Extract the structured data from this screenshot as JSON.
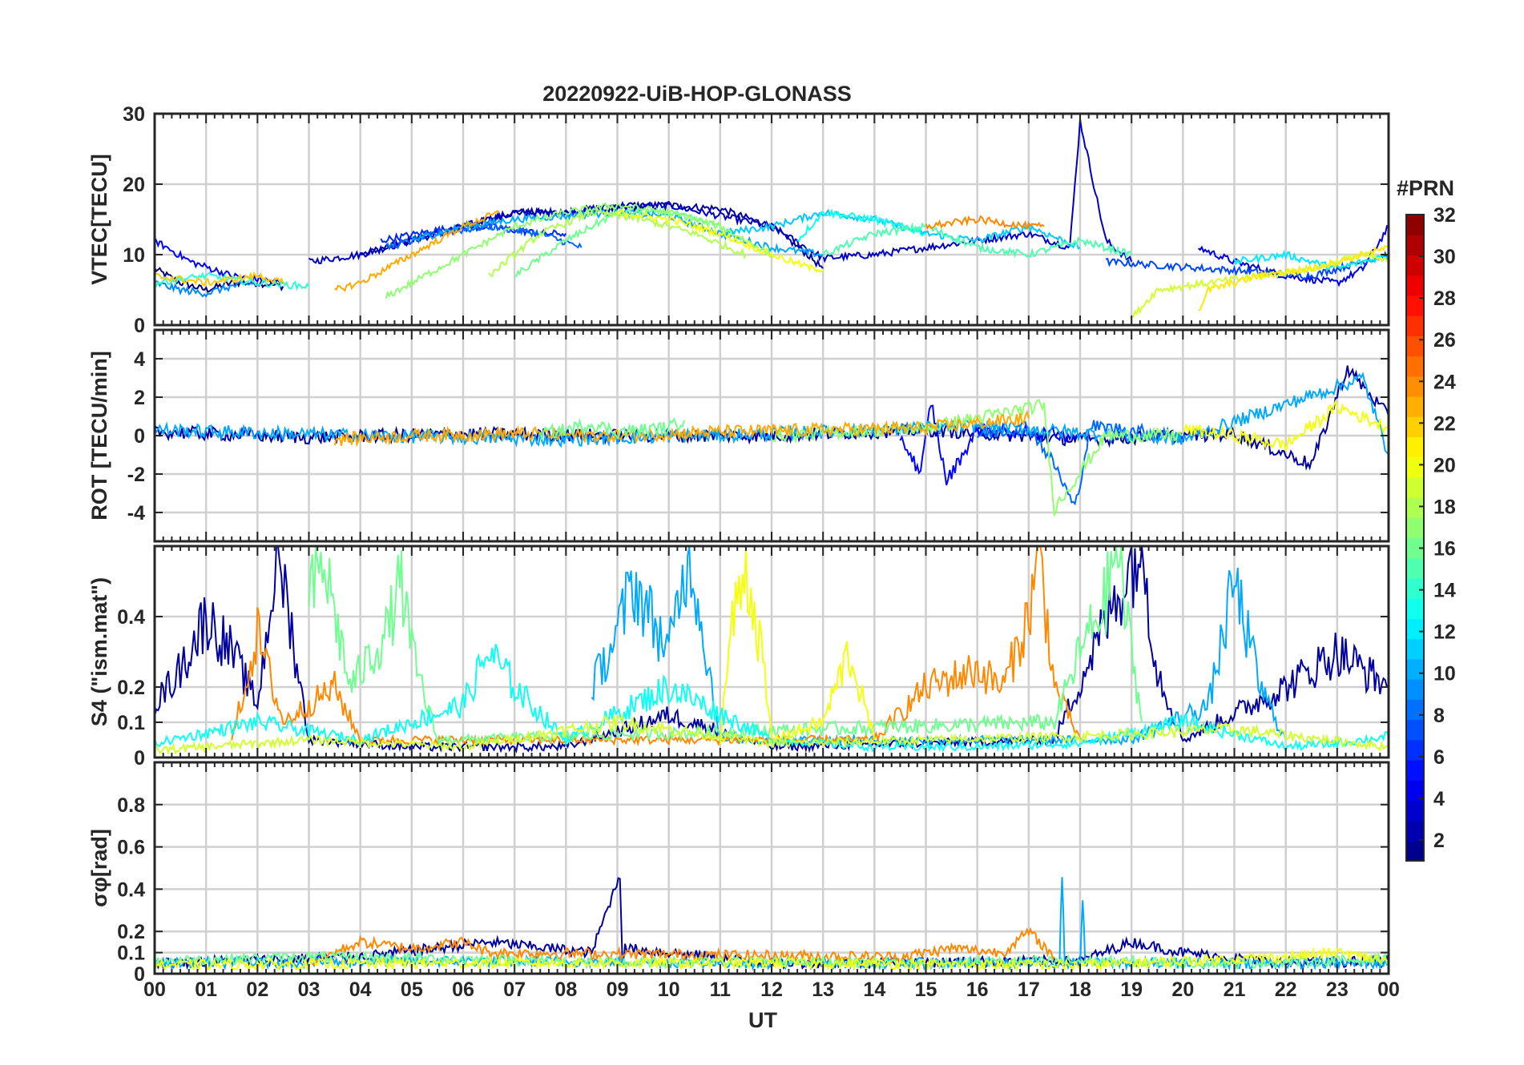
{
  "figure": {
    "title": "20220922-UiB-HOP-GLONASS",
    "xlabel": "UT",
    "x_ticks": [
      "00",
      "01",
      "02",
      "03",
      "04",
      "05",
      "06",
      "07",
      "08",
      "09",
      "10",
      "11",
      "12",
      "13",
      "14",
      "15",
      "16",
      "17",
      "18",
      "19",
      "20",
      "21",
      "22",
      "23",
      "00"
    ]
  },
  "colorbar": {
    "title": "#PRN",
    "range": [
      1,
      32
    ],
    "ticks": [
      "2",
      "4",
      "6",
      "8",
      "10",
      "12",
      "14",
      "16",
      "18",
      "20",
      "22",
      "24",
      "26",
      "28",
      "30",
      "32"
    ],
    "colormap": "jet"
  },
  "chart_data": [
    {
      "type": "line",
      "panel": "vtec",
      "ylabel": "VTEC[TECU]",
      "ylim": [
        0,
        30
      ],
      "y_ticks": [
        "0",
        "10",
        "20",
        "30"
      ],
      "xlim": [
        0,
        24
      ],
      "grid": true,
      "series": [
        {
          "prn": 1,
          "x": [
            0.0,
            0.5,
            1.0,
            1.5,
            2.0,
            2.5
          ],
          "y": [
            8,
            6,
            5,
            6,
            6,
            5.5
          ]
        },
        {
          "prn": 2,
          "x": [
            4.0,
            6.0,
            7.0,
            8.0,
            9.0,
            10.0,
            11.0,
            12.0,
            12.7,
            13.0
          ],
          "y": [
            10,
            14,
            16,
            16,
            16.5,
            17,
            16.5,
            14,
            10,
            8
          ]
        },
        {
          "prn": 3,
          "x": [
            3.0,
            4.0,
            5.0,
            6.0,
            7.0,
            8.0,
            9.0,
            10.0,
            11.0,
            12.0,
            13.0,
            14.0,
            15.0,
            16.0,
            17.0,
            17.8,
            18.0,
            18.5,
            19.0
          ],
          "y": [
            9,
            10,
            12,
            14,
            16,
            16,
            17,
            17,
            15.5,
            14,
            9.5,
            10,
            11,
            12,
            13,
            11,
            29,
            12,
            9
          ]
        },
        {
          "prn": 4,
          "x": [
            20.3,
            21.0,
            22.0,
            23.0,
            23.5,
            24.0
          ],
          "y": [
            11,
            9,
            7,
            6,
            8,
            14
          ]
        },
        {
          "prn": 5,
          "x": [
            0.0,
            0.7,
            1.5,
            2.5
          ],
          "y": [
            12,
            9,
            7,
            6
          ]
        },
        {
          "prn": 6,
          "x": [
            4.4,
            5.5,
            6.5,
            7.0,
            7.5,
            8.0
          ],
          "y": [
            12,
            13.5,
            14,
            13.5,
            13,
            13
          ]
        },
        {
          "prn": 7,
          "x": [
            18.5,
            19.5,
            20.5,
            21.5,
            22.5,
            23.5,
            24.0
          ],
          "y": [
            9,
            8.5,
            8,
            7.5,
            7,
            9,
            10
          ]
        },
        {
          "prn": 8,
          "x": [
            4.5,
            5.5,
            6.5,
            7.5,
            8.3
          ],
          "y": [
            11,
            13,
            14,
            13,
            11
          ]
        },
        {
          "prn": 9,
          "x": [
            0.0,
            0.5,
            1.0,
            1.5,
            2.0
          ],
          "y": [
            6,
            5,
            4.5,
            5.5,
            6
          ]
        },
        {
          "prn": 10,
          "x": [
            5.0,
            6.0,
            7.0,
            8.0,
            9.0,
            10.0,
            11.0,
            12.0,
            13.0
          ],
          "y": [
            12,
            14,
            15,
            15.5,
            16,
            15.5,
            13,
            11,
            10
          ]
        },
        {
          "prn": 11,
          "x": [
            11.0,
            12.0,
            12.5,
            13.0,
            14.0,
            15.0,
            16.0,
            17.0,
            18.0
          ],
          "y": [
            13,
            14,
            15,
            16,
            15,
            13,
            12,
            14,
            11
          ]
        },
        {
          "prn": 12,
          "x": [
            21.0,
            22.0,
            23.0,
            24.0
          ],
          "y": [
            9,
            10,
            8,
            10
          ]
        },
        {
          "prn": 13,
          "x": [
            12.5,
            13.0,
            14.0,
            15.0
          ],
          "y": [
            12,
            16,
            15,
            13
          ]
        },
        {
          "prn": 14,
          "x": [
            0.0,
            1.0,
            2.0,
            3.0
          ],
          "y": [
            6,
            7,
            6,
            5.5
          ]
        },
        {
          "prn": 15,
          "x": [
            13.0,
            14.0,
            15.0,
            16.0,
            17.0,
            18.0,
            19.0
          ],
          "y": [
            10,
            13,
            14,
            11,
            10,
            12,
            10
          ]
        },
        {
          "prn": 16,
          "x": [
            7.0,
            8.0,
            9.0,
            10.0,
            11.0
          ],
          "y": [
            7,
            12,
            16,
            16,
            14
          ]
        },
        {
          "prn": 17,
          "x": [
            4.5,
            5.0,
            6.0,
            7.0,
            8.0,
            9.0,
            10.0,
            11.0,
            12.0
          ],
          "y": [
            4,
            6,
            10,
            14,
            16,
            17,
            16,
            14,
            10
          ]
        },
        {
          "prn": 18,
          "x": [
            6.5,
            7.5,
            8.5,
            9.5,
            10.5,
            11.5
          ],
          "y": [
            7,
            13,
            16,
            15,
            13,
            10
          ]
        },
        {
          "prn": 19,
          "x": [
            19.0,
            19.5,
            20.5,
            21.5,
            22.5,
            23.5,
            24.0
          ],
          "y": [
            1,
            5,
            6,
            7,
            8,
            10,
            9
          ]
        },
        {
          "prn": 20,
          "x": [
            9.0,
            10.0,
            11.0,
            12.0,
            12.8,
            13.0
          ],
          "y": [
            16,
            15,
            13,
            10,
            8,
            8
          ]
        },
        {
          "prn": 21,
          "x": [
            20.3,
            20.5,
            21.0,
            21.5,
            22.5,
            23.5,
            24.0
          ],
          "y": [
            2,
            5,
            6,
            7,
            8,
            10,
            11
          ]
        },
        {
          "prn": 22,
          "x": [
            0.0,
            1.0,
            2.0,
            2.5
          ],
          "y": [
            7,
            6,
            7,
            6
          ]
        },
        {
          "prn": 23,
          "x": [
            3.5,
            4.0,
            5.0,
            6.0,
            6.7
          ],
          "y": [
            5,
            6,
            10,
            14,
            16
          ]
        },
        {
          "prn": 24,
          "x": [
            15.0,
            16.0,
            17.0,
            17.3
          ],
          "y": [
            14,
            15,
            14,
            14
          ]
        }
      ]
    },
    {
      "type": "line",
      "panel": "rot",
      "ylabel": "ROT [TECU/min]",
      "ylim": [
        -5.5,
        5.5
      ],
      "y_ticks": [
        "-4",
        "-2",
        "0",
        "2",
        "4"
      ],
      "xlim": [
        0,
        24
      ],
      "grid": true,
      "series": [
        {
          "prn": 2,
          "x": [
            0.0,
            3.0,
            6.0,
            9.0,
            12.0,
            15.0,
            18.0,
            21.0,
            22.5,
            23.2,
            24.0
          ],
          "y": [
            0.2,
            -0.1,
            0.1,
            0,
            0,
            0.3,
            -0.2,
            0.1,
            -1.5,
            3.5,
            1
          ]
        },
        {
          "prn": 5,
          "x": [
            14.5,
            14.9,
            15.1,
            15.4,
            16.0,
            18.0
          ],
          "y": [
            0,
            -2.0,
            1.8,
            -2.4,
            0.3,
            0
          ]
        },
        {
          "prn": 8,
          "x": [
            16.0,
            17.0,
            17.5,
            17.9,
            18.2,
            20.0
          ],
          "y": [
            0,
            0.5,
            -1.5,
            -3.8,
            0.5,
            0
          ]
        },
        {
          "prn": 10,
          "x": [
            0.0,
            4.0,
            8.0,
            12.0,
            16.0,
            20.0,
            23.5,
            24.0
          ],
          "y": [
            0.3,
            0,
            -0.2,
            0.1,
            0.5,
            -0.2,
            3.0,
            -1
          ]
        },
        {
          "prn": 17,
          "x": [
            12.0,
            15.0,
            17.3,
            17.5,
            18.5,
            20.0
          ],
          "y": [
            0,
            0.4,
            1.6,
            -3.8,
            0,
            0
          ]
        },
        {
          "prn": 20,
          "x": [
            20.0,
            21.0,
            22.0,
            23.0,
            24.0
          ],
          "y": [
            0.3,
            0,
            -0.5,
            1.5,
            0.4
          ]
        },
        {
          "prn": 23,
          "x": [
            3.5,
            5.0,
            7.0,
            9.0,
            11.0,
            15.0,
            17.0
          ],
          "y": [
            -0.2,
            0,
            0.1,
            0,
            0.2,
            0.4,
            0.9
          ]
        },
        {
          "prn": 16,
          "x": [
            7.5,
            8.0,
            8.5,
            9.0,
            10.0,
            10.3
          ],
          "y": [
            0.1,
            0.3,
            0.6,
            0.2,
            0.4,
            0.8
          ]
        }
      ]
    },
    {
      "type": "line",
      "panel": "s4",
      "ylabel": "S4 (\"ism.mat\")",
      "ylim": [
        0,
        0.6
      ],
      "y_ticks": [
        "0",
        "0.1",
        "0.2",
        "0.4"
      ],
      "xlim": [
        0,
        24
      ],
      "grid": true,
      "series": [
        {
          "prn": 2,
          "x": [
            0.0,
            0.5,
            1.0,
            1.5,
            2.0,
            2.4,
            3.0,
            5.0,
            8.0,
            10.0,
            12.0,
            17.5,
            19.0,
            19.2,
            19.5,
            20.0,
            22.0,
            23.0,
            24.0
          ],
          "y": [
            0.15,
            0.25,
            0.4,
            0.3,
            0.15,
            0.6,
            0.05,
            0.03,
            0.03,
            0.12,
            0.03,
            0.05,
            0.55,
            0.6,
            0.25,
            0.05,
            0.2,
            0.3,
            0.2
          ]
        },
        {
          "prn": 10,
          "x": [
            8.5,
            9.0,
            9.3,
            10.0,
            10.4,
            11.0,
            19.0,
            20.5,
            21.0,
            21.5,
            22.0
          ],
          "y": [
            0.2,
            0.35,
            0.5,
            0.3,
            0.6,
            0.05,
            0.05,
            0.15,
            0.5,
            0.2,
            0.05
          ]
        },
        {
          "prn": 24,
          "x": [
            1.5,
            2.0,
            2.5,
            3.5,
            4.0,
            14.0,
            15.0,
            16.0,
            16.5,
            17.0,
            17.2,
            17.5,
            18.0
          ],
          "y": [
            0.05,
            0.35,
            0.1,
            0.2,
            0.05,
            0.05,
            0.2,
            0.25,
            0.2,
            0.4,
            0.6,
            0.2,
            0.05
          ]
        },
        {
          "prn": 16,
          "x": [
            3.0,
            3.3,
            3.8,
            4.5,
            4.8,
            5.0,
            5.5,
            17.5,
            18.0,
            18.5,
            18.7,
            19.2
          ],
          "y": [
            0.45,
            0.55,
            0.2,
            0.35,
            0.5,
            0.3,
            0.05,
            0.1,
            0.3,
            0.45,
            0.6,
            0.1
          ]
        },
        {
          "prn": 20,
          "x": [
            11.0,
            11.2,
            11.5,
            11.8,
            12.0,
            13.0,
            13.5,
            14.0
          ],
          "y": [
            0.05,
            0.35,
            0.55,
            0.3,
            0.05,
            0.1,
            0.3,
            0.05
          ]
        },
        {
          "prn": 13,
          "x": [
            0.0,
            2.0,
            4.0,
            6.0,
            6.5,
            7.0,
            8.0,
            10.0,
            12.0,
            14.0,
            16.0,
            18.0,
            20.0,
            21.5,
            22.0,
            23.0,
            24.0
          ],
          "y": [
            0.04,
            0.1,
            0.05,
            0.15,
            0.3,
            0.2,
            0.05,
            0.2,
            0.05,
            0.03,
            0.03,
            0.04,
            0.1,
            0.05,
            0.03,
            0.04,
            0.06
          ]
        },
        {
          "prn": 19,
          "x": [
            0.0,
            3.0,
            6.0,
            9.0,
            12.0,
            15.0,
            18.0,
            21.0,
            24.0
          ],
          "y": [
            0.02,
            0.05,
            0.03,
            0.1,
            0.04,
            0.05,
            0.06,
            0.08,
            0.03
          ]
        }
      ]
    },
    {
      "type": "line",
      "panel": "sigma_phi",
      "ylabel": "σφ[rad]",
      "ylim": [
        0,
        1
      ],
      "y_ticks": [
        "0",
        "0.1",
        "0.2",
        "0.4",
        "0.6",
        "0.8"
      ],
      "xlim": [
        0,
        24
      ],
      "grid": true,
      "series": [
        {
          "prn": 2,
          "x": [
            0.0,
            4.0,
            6.5,
            8.5,
            9.05,
            9.1,
            9.15,
            10.0,
            12.0,
            18.0,
            19.0,
            20.0,
            22.0,
            24.0
          ],
          "y": [
            0.05,
            0.08,
            0.15,
            0.1,
            0.47,
            0.05,
            0.12,
            0.1,
            0.05,
            0.06,
            0.15,
            0.1,
            0.05,
            0.06
          ]
        },
        {
          "prn": 10,
          "x": [
            0.0,
            6.0,
            12.0,
            17.6,
            17.65,
            17.7,
            18.0,
            18.05,
            18.1,
            24.0
          ],
          "y": [
            0.05,
            0.06,
            0.05,
            0.05,
            0.48,
            0.05,
            0.05,
            0.37,
            0.05,
            0.05
          ]
        },
        {
          "prn": 24,
          "x": [
            3.0,
            4.0,
            5.0,
            6.0,
            6.5,
            14.5,
            15.5,
            16.5,
            17.0,
            17.5
          ],
          "y": [
            0.05,
            0.15,
            0.12,
            0.15,
            0.1,
            0.08,
            0.12,
            0.1,
            0.2,
            0.08
          ]
        },
        {
          "prn": 16,
          "x": [
            0.0,
            3.0,
            6.0,
            9.0,
            12.0,
            15.0,
            18.0,
            21.0,
            24.0
          ],
          "y": [
            0.06,
            0.08,
            0.07,
            0.05,
            0.06,
            0.05,
            0.06,
            0.05,
            0.07
          ]
        },
        {
          "prn": 20,
          "x": [
            0.0,
            6.0,
            12.0,
            18.0,
            22.0,
            23.0,
            24.0
          ],
          "y": [
            0.04,
            0.05,
            0.05,
            0.04,
            0.08,
            0.1,
            0.06
          ]
        }
      ]
    }
  ]
}
